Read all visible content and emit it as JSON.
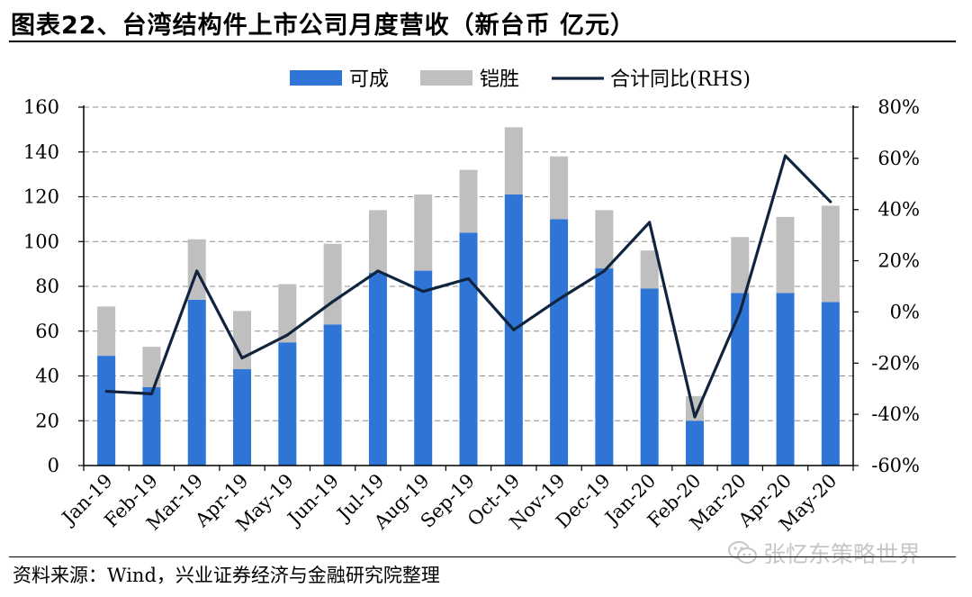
{
  "title": "图表22、台湾结构件上市公司月度营收（新台币 亿元）",
  "source": "资料来源：Wind，兴业证券经济与金融研究院整理",
  "watermark": "张忆东策略世界",
  "colors": {
    "kecheng": "#2e75d6",
    "kaisheng": "#bfbfbf",
    "yoy_line": "#10243e",
    "grid": "#8c8c8c"
  },
  "chart_data": {
    "type": "bar",
    "stacked": true,
    "categories": [
      "Jan-19",
      "Feb-19",
      "Mar-19",
      "Apr-19",
      "May-19",
      "Jun-19",
      "Jul-19",
      "Aug-19",
      "Sep-19",
      "Oct-19",
      "Nov-19",
      "Dec-19",
      "Jan-20",
      "Feb-20",
      "Mar-20",
      "Apr-20",
      "May-20"
    ],
    "series": [
      {
        "name": "可成",
        "type": "bar",
        "axis": "left",
        "values": [
          49,
          35,
          74,
          43,
          55,
          63,
          86,
          87,
          104,
          121,
          110,
          88,
          79,
          20,
          77,
          77,
          73
        ]
      },
      {
        "name": "铠胜",
        "type": "bar",
        "axis": "left",
        "values": [
          22,
          18,
          27,
          26,
          26,
          36,
          28,
          34,
          28,
          30,
          28,
          26,
          17,
          11,
          25,
          34,
          43
        ]
      },
      {
        "name": "合计同比(RHS)",
        "type": "line",
        "axis": "right",
        "values": [
          -31,
          -32,
          16,
          -18,
          -9,
          4,
          16,
          8,
          13,
          -7,
          5,
          16,
          35,
          -41,
          0,
          61,
          43
        ]
      }
    ],
    "ylim": [
      0,
      160
    ],
    "yticks": [
      "0",
      "20",
      "40",
      "60",
      "80",
      "100",
      "120",
      "140",
      "160"
    ],
    "y2lim": [
      -60,
      80
    ],
    "y2ticks": [
      "-60%",
      "-40%",
      "-20%",
      "0%",
      "20%",
      "40%",
      "60%",
      "80%"
    ],
    "grid": true,
    "legend": "top-center"
  }
}
